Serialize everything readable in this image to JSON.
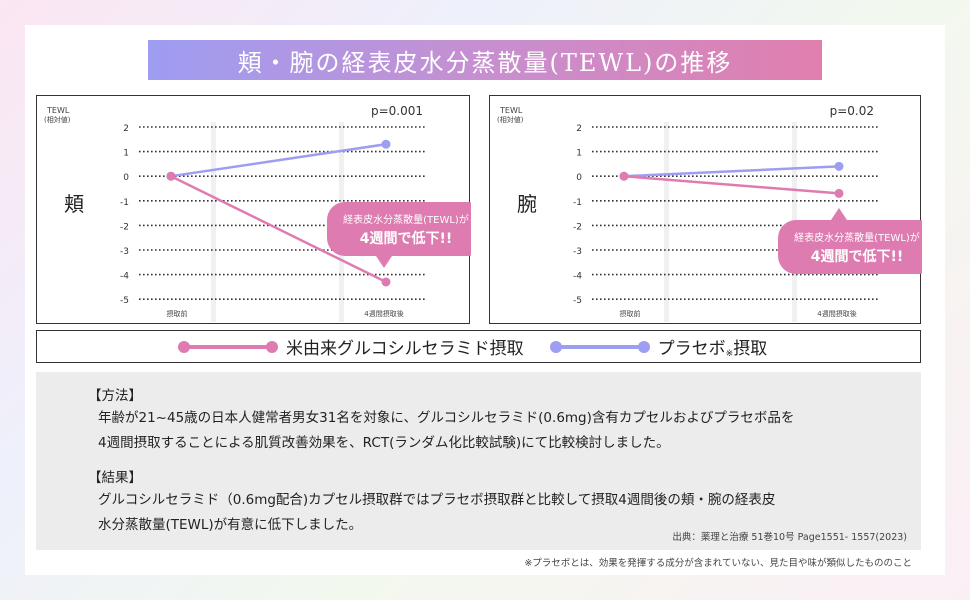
{
  "title": "頬・腕の経表皮水分蒸散量(TEWL)の推移",
  "chart_data": [
    {
      "type": "line",
      "region": "頬",
      "ylabel": "TEWL",
      "ylabel_sub": "(相対値)",
      "categories": [
        "摂取前",
        "4週間摂取後"
      ],
      "ylim": [
        -5,
        2
      ],
      "yticks": [
        "2",
        "1",
        "0",
        "-1",
        "-2",
        "-3",
        "-4",
        "-5"
      ],
      "p_value": "p=0.001",
      "series": [
        {
          "name": "米由来グルコシルセラミド摂取",
          "color": "#de7bb0",
          "values": [
            0,
            -4.3
          ]
        },
        {
          "name": "プラセボ",
          "color": "#9d9df2",
          "values": [
            0,
            1.3
          ]
        }
      ],
      "callout": {
        "line1": "経表皮水分蒸散量(TEWL)が",
        "line2": "4週間で低下!!"
      }
    },
    {
      "type": "line",
      "region": "腕",
      "ylabel": "TEWL",
      "ylabel_sub": "(相対値)",
      "categories": [
        "摂取前",
        "4週間摂取後"
      ],
      "ylim": [
        -5,
        2
      ],
      "yticks": [
        "2",
        "1",
        "0",
        "-1",
        "-2",
        "-3",
        "-4",
        "-5"
      ],
      "p_value": "p=0.02",
      "series": [
        {
          "name": "米由来グルコシルセラミド摂取",
          "color": "#de7bb0",
          "values": [
            0,
            -0.7
          ]
        },
        {
          "name": "プラセボ",
          "color": "#9d9df2",
          "values": [
            0,
            0.4
          ]
        }
      ],
      "callout": {
        "line1": "経表皮水分蒸散量(TEWL)が",
        "line2": "4週間で低下!!"
      }
    }
  ],
  "legend": {
    "rice": "米由来グルコシルセラミド摂取",
    "placebo": "プラセボ",
    "placebo_mark": "※",
    "placebo_suffix": "摂取"
  },
  "info": {
    "method_title": "【方法】",
    "method_1": "年齢が21~45歳の日本人健常者男女31名を対象に、グルコシルセラミド(0.6mg)含有カプセルおよびプラセボ品を",
    "method_2": "4週間摂取することによる肌質改善効果を、RCT(ランダム化比較試験)にて比較検討しました。",
    "result_title": "【結果】",
    "result_1": "グルコシルセラミド（0.6mg配合)カプセル摂取群ではプラセボ摂取群と比較して摂取4週間後の頬・腕の経表皮",
    "result_2": "水分蒸散量(TEWL)が有意に低下しました。",
    "source": "出典：薬理と治療 51巻10号 Page1551- 1557(2023)"
  },
  "footnote": "※プラセボとは、効果を発揮する成分が含まれていない、見た目や味が類似したもののこと"
}
